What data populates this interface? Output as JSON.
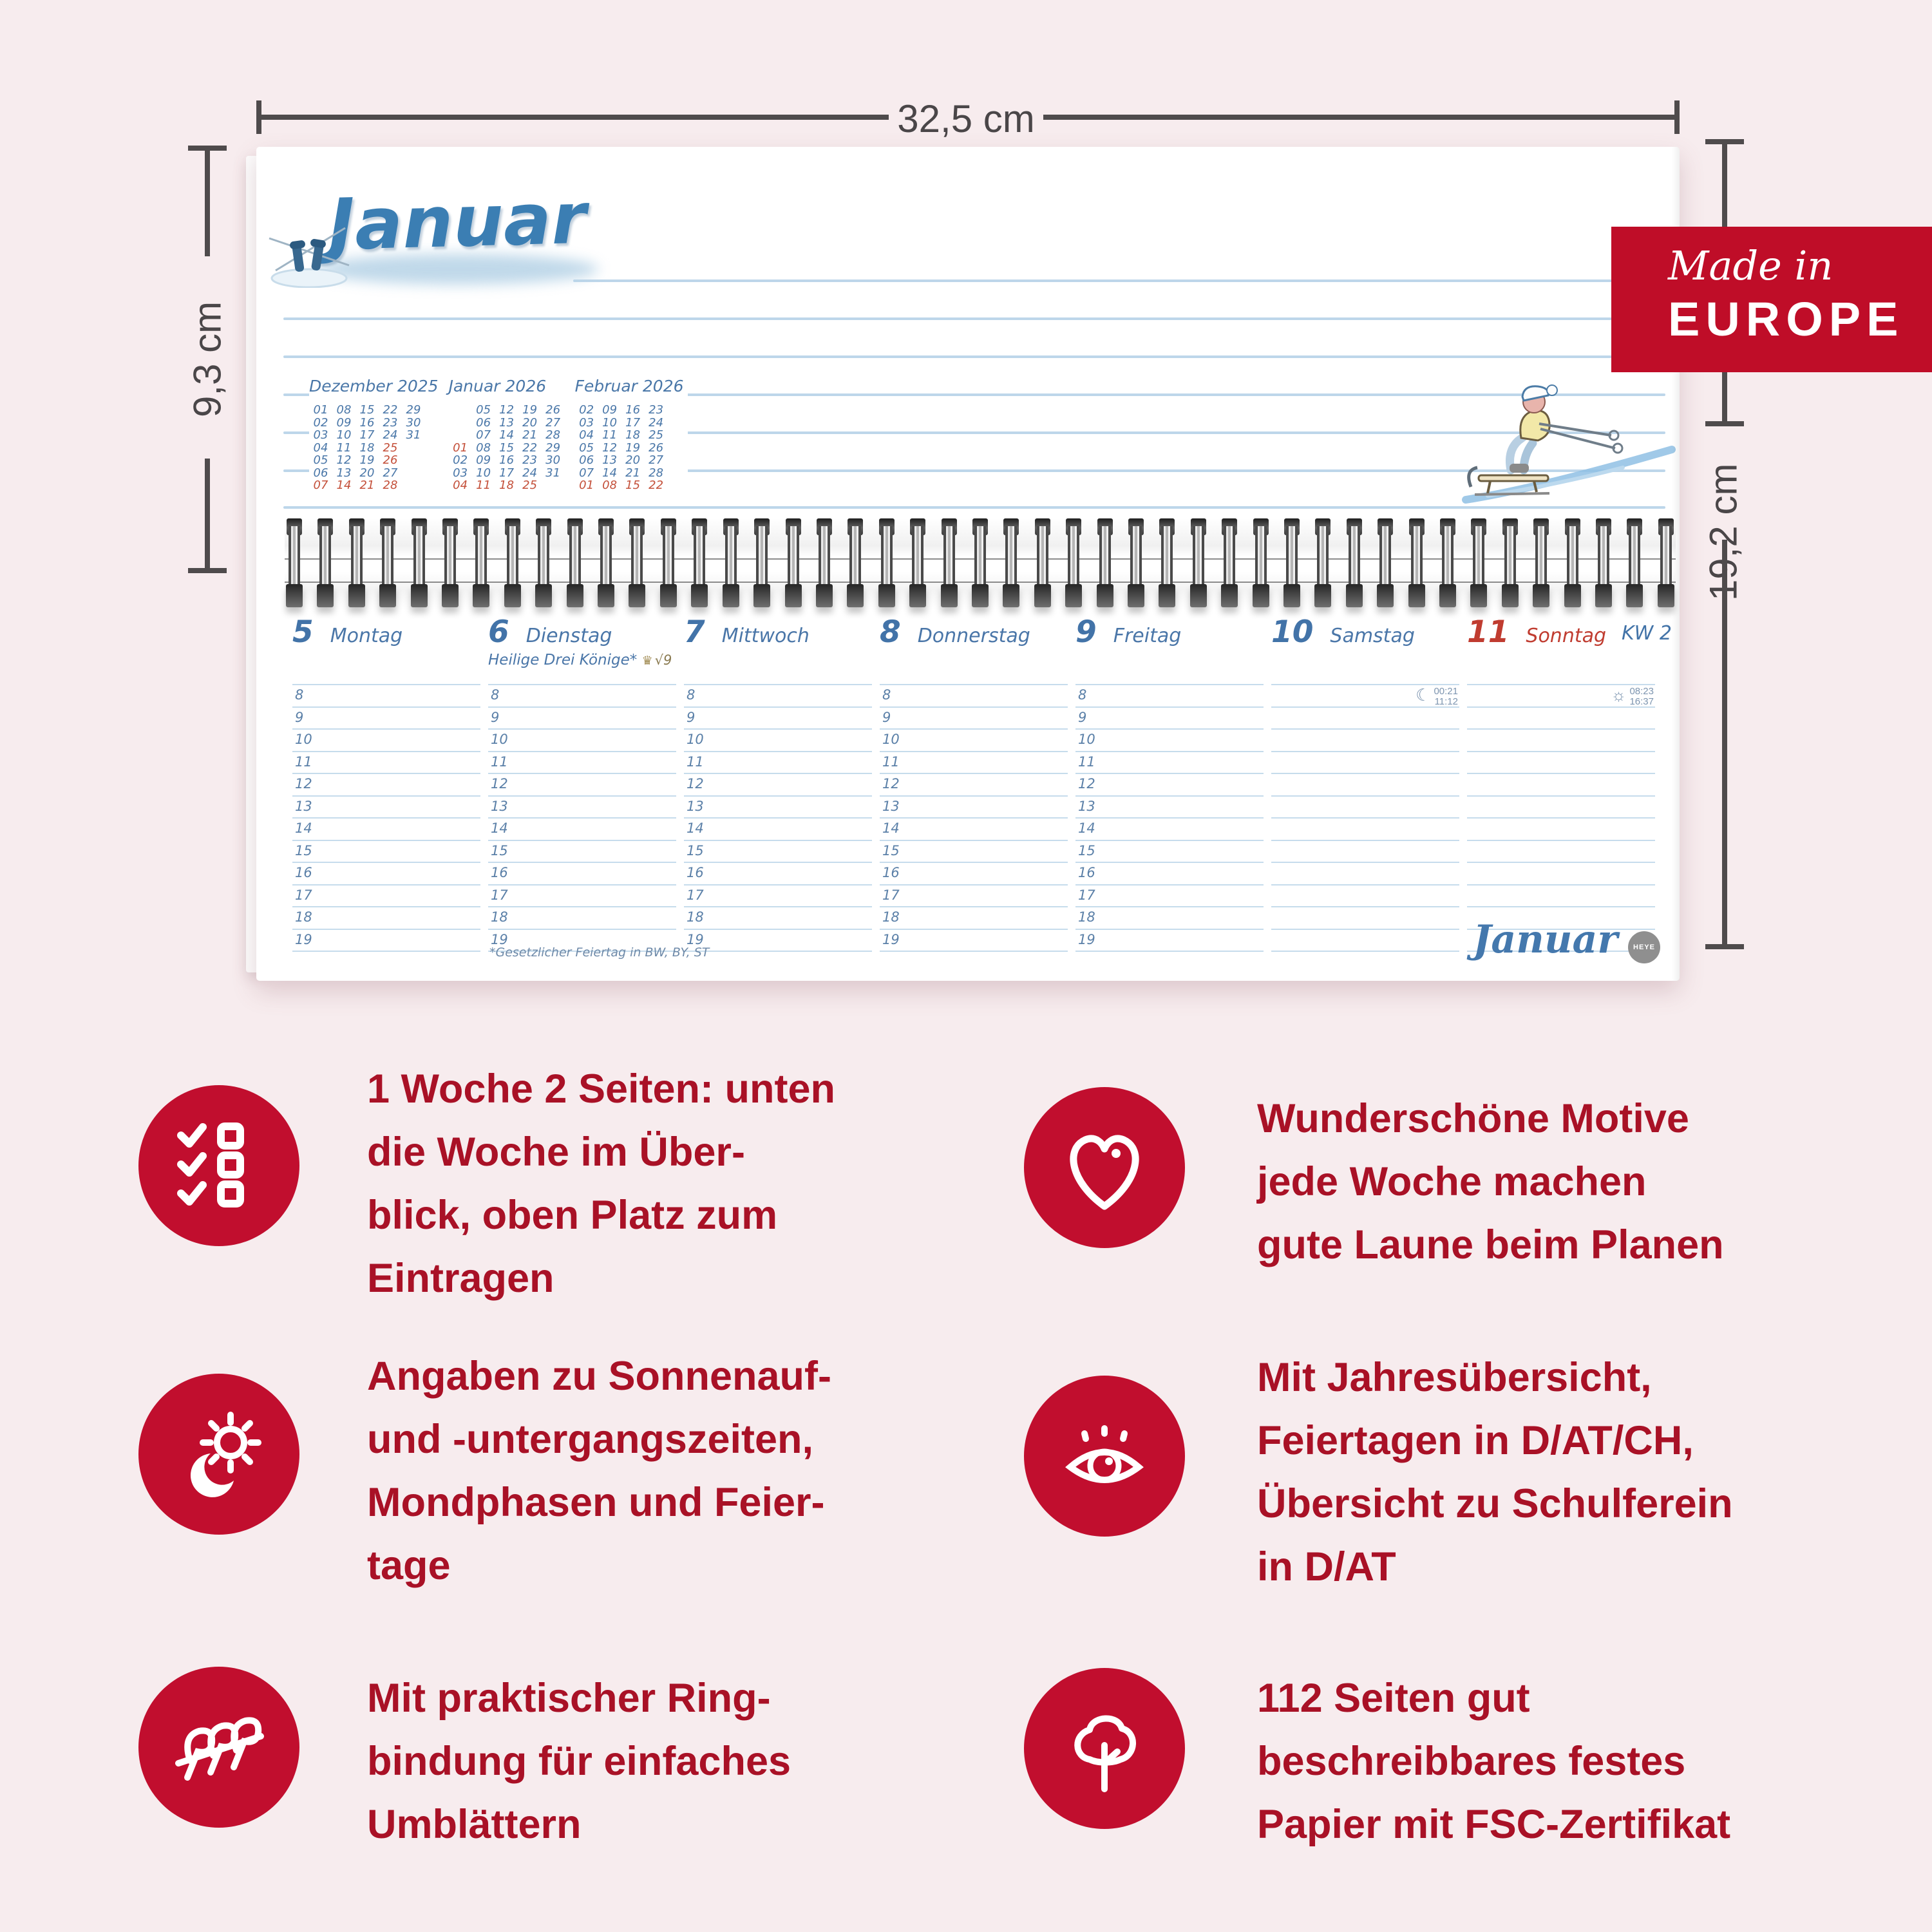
{
  "dimensions": {
    "width": "32,5 cm",
    "height_top": "9,3 cm",
    "height_total": "19,2 cm"
  },
  "badge": {
    "line1": "Made in",
    "line2": "EUROPE"
  },
  "calendar": {
    "month_title": "Januar",
    "page_month_label": "Januar",
    "publisher": "HEYE",
    "mini_months": [
      {
        "title": "Dezember 2025",
        "rows": [
          {
            "cells": [
              "01",
              "08",
              "15",
              "22",
              "29"
            ],
            "red": []
          },
          {
            "cells": [
              "02",
              "09",
              "16",
              "23",
              "30"
            ],
            "red": []
          },
          {
            "cells": [
              "03",
              "10",
              "17",
              "24",
              "31"
            ],
            "red": []
          },
          {
            "cells": [
              "04",
              "11",
              "18",
              "25"
            ],
            "red": [
              3
            ]
          },
          {
            "cells": [
              "05",
              "12",
              "19",
              "26"
            ],
            "red": [
              3
            ]
          },
          {
            "cells": [
              "06",
              "13",
              "20",
              "27"
            ],
            "red": []
          },
          {
            "cells": [
              "07",
              "14",
              "21",
              "28"
            ],
            "red": [
              0,
              1,
              2,
              3
            ]
          }
        ]
      },
      {
        "title": "Januar 2026",
        "rows": [
          {
            "cells": [
              "",
              "05",
              "12",
              "19",
              "26"
            ],
            "red": []
          },
          {
            "cells": [
              "",
              "06",
              "13",
              "20",
              "27"
            ],
            "red": []
          },
          {
            "cells": [
              "",
              "07",
              "14",
              "21",
              "28"
            ],
            "red": []
          },
          {
            "cells": [
              "01",
              "08",
              "15",
              "22",
              "29"
            ],
            "red": [
              0
            ]
          },
          {
            "cells": [
              "02",
              "09",
              "16",
              "23",
              "30"
            ],
            "red": []
          },
          {
            "cells": [
              "03",
              "10",
              "17",
              "24",
              "31"
            ],
            "red": []
          },
          {
            "cells": [
              "04",
              "11",
              "18",
              "25"
            ],
            "red": [
              0,
              1,
              2,
              3
            ]
          }
        ]
      },
      {
        "title": "Februar 2026",
        "rows": [
          {
            "cells": [
              "02",
              "09",
              "16",
              "23"
            ],
            "red": []
          },
          {
            "cells": [
              "03",
              "10",
              "17",
              "24"
            ],
            "red": []
          },
          {
            "cells": [
              "04",
              "11",
              "18",
              "25"
            ],
            "red": []
          },
          {
            "cells": [
              "05",
              "12",
              "19",
              "26"
            ],
            "red": []
          },
          {
            "cells": [
              "06",
              "13",
              "20",
              "27"
            ],
            "red": []
          },
          {
            "cells": [
              "07",
              "14",
              "21",
              "28"
            ],
            "red": []
          },
          {
            "cells": [
              "01",
              "08",
              "15",
              "22"
            ],
            "red": [
              0,
              1,
              2,
              3
            ]
          }
        ]
      }
    ],
    "week": {
      "label": "KW 2",
      "footnote": "*Gesetzlicher Feiertag in BW, BY, ST",
      "hour_labels": [
        "8",
        "9",
        "10",
        "11",
        "12",
        "13",
        "14",
        "15",
        "16",
        "17",
        "18",
        "19"
      ],
      "days": [
        {
          "num": "5",
          "name": "Montag",
          "hours": true,
          "red": false
        },
        {
          "num": "6",
          "name": "Dienstag",
          "hours": true,
          "red": false,
          "note": "Heilige Drei Könige*",
          "note_symbol": "√9"
        },
        {
          "num": "7",
          "name": "Mittwoch",
          "hours": true,
          "red": false
        },
        {
          "num": "8",
          "name": "Donnerstag",
          "hours": true,
          "red": false
        },
        {
          "num": "9",
          "name": "Freitag",
          "hours": true,
          "red": false
        },
        {
          "num": "10",
          "name": "Samstag",
          "hours": false,
          "red": false,
          "annotation": {
            "icon": "moon-icon",
            "times": [
              "00:21",
              "11:12"
            ]
          }
        },
        {
          "num": "11",
          "name": "Sonntag",
          "hours": false,
          "red": true,
          "annotation": {
            "icon": "sun-icon",
            "times": [
              "08:23",
              "16:37"
            ]
          }
        }
      ]
    }
  },
  "features": [
    {
      "icon": "checklist-icon",
      "lines": [
        "1 Woche 2 Seiten: unten",
        "die Woche im Über-",
        "blick, oben Platz zum",
        "Eintragen"
      ]
    },
    {
      "icon": "heart-icon",
      "lines": [
        "Wunderschöne Motive",
        "jede Woche machen",
        "gute Laune beim Planen"
      ]
    },
    {
      "icon": "sun-moon-icon",
      "lines": [
        "Angaben zu Sonnenauf-",
        "und -untergangszeiten,",
        "Mondphasen und Feier-",
        "tage"
      ]
    },
    {
      "icon": "eye-icon",
      "lines": [
        "Mit Jahresübersicht,",
        "Feiertagen in D/AT/CH,",
        "Übersicht zu Schulferein",
        "in D/AT"
      ]
    },
    {
      "icon": "ring-binding-icon",
      "lines": [
        "Mit praktischer Ring-",
        "bindung für einfaches",
        "Umblättern"
      ]
    },
    {
      "icon": "tree-icon",
      "lines": [
        "112 Seiten gut",
        "beschreibbares festes",
        "Papier mit FSC-Zertifikat"
      ]
    }
  ],
  "colors": {
    "brand_red": "#bf0d28",
    "text_red": "#a91126",
    "calendar_blue": "#4273a8",
    "holiday_red": "#c03c30",
    "line_blue": "#bdd6ea",
    "dimension_gray": "#4f4b4c",
    "background_pink": "#f7ecee"
  }
}
